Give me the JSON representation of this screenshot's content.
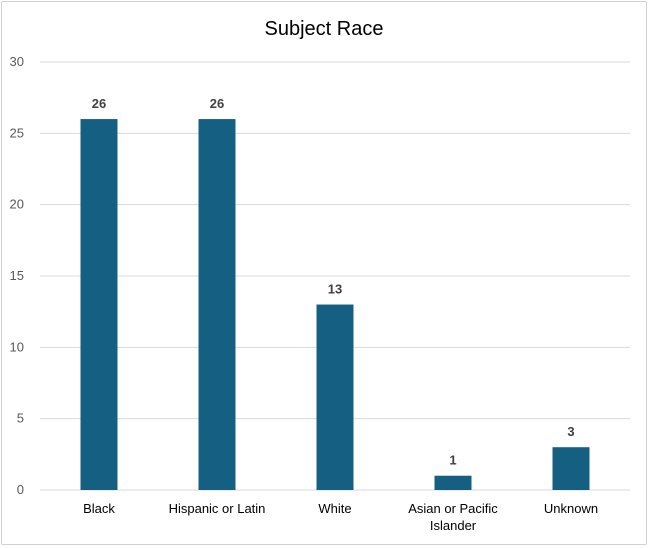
{
  "chart_data": {
    "type": "bar",
    "title": "Subject Race",
    "categories": [
      "Black",
      "Hispanic or Latin",
      "White",
      "Asian or Pacific Islander",
      "Unknown"
    ],
    "category_lines": [
      [
        "Black"
      ],
      [
        "Hispanic or Latin"
      ],
      [
        "White"
      ],
      [
        "Asian or Pacific",
        "Islander"
      ],
      [
        "Unknown"
      ]
    ],
    "values": [
      26,
      26,
      13,
      1,
      3
    ],
    "data_labels": [
      "26",
      "26",
      "13",
      "1",
      "3"
    ],
    "xlabel": "",
    "ylabel": "",
    "ylim": [
      0,
      30
    ],
    "yticks": [
      0,
      5,
      10,
      15,
      20,
      25,
      30
    ],
    "ytick_labels": [
      "0",
      "5",
      "10",
      "15",
      "20",
      "25",
      "30"
    ],
    "grid": true,
    "legend": "none",
    "bar_color": "#156082",
    "grid_color": "#d9d9d9"
  }
}
